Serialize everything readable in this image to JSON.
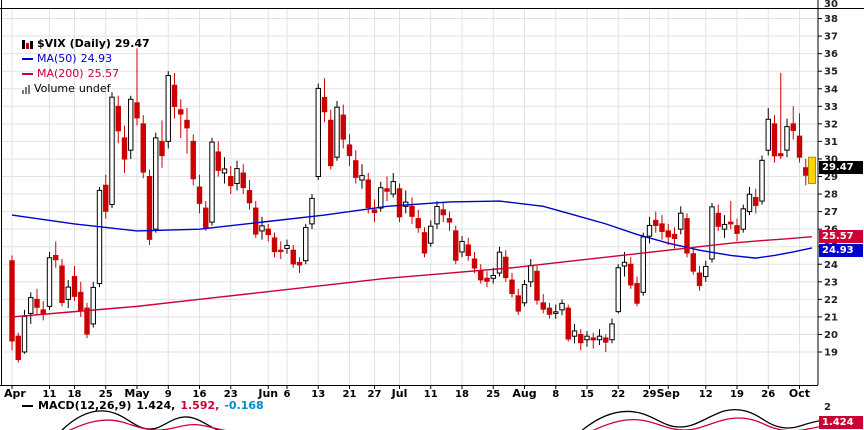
{
  "legend": {
    "symbol": "$VIX (Daily)",
    "symbol_value": "29.47",
    "ma50_label": "MA(50)",
    "ma50_value": "24.93",
    "ma200_label": "MA(200)",
    "ma200_value": "25.57",
    "volume_label": "Volume",
    "volume_value": "undef"
  },
  "price_labels": {
    "last": "29.47",
    "ma200": "25.57",
    "ma50": "24.93",
    "upper_panel": "30",
    "macd_axis": "2",
    "macd_box": "1.424"
  },
  "macd": {
    "label": "MACD(12,26,9)",
    "macd_value": "1.424,",
    "signal_value": "1.592,",
    "hist_value": "-0.168"
  },
  "colors": {
    "up": "#000000",
    "down": "#cc0000",
    "last_highlight": "#ffd400",
    "ma50": "#0000cc",
    "ma200": "#cc0033",
    "grid": "#e2e2e2"
  },
  "chart_data": {
    "type": "candlestick",
    "symbol": "$VIX",
    "timeframe": "Daily",
    "last_price": 29.47,
    "ma50_value": 24.93,
    "ma200_value": 25.57,
    "y_axis": {
      "min": 19,
      "max": 38,
      "tick_step": 1
    },
    "x_ticks": [
      {
        "label": "Apr",
        "i": 0,
        "month": true
      },
      {
        "label": "11",
        "i": 6
      },
      {
        "label": "18",
        "i": 10
      },
      {
        "label": "25",
        "i": 15
      },
      {
        "label": "May",
        "i": 20,
        "month": true
      },
      {
        "label": "9",
        "i": 25
      },
      {
        "label": "16",
        "i": 30
      },
      {
        "label": "23",
        "i": 35
      },
      {
        "label": "Jun",
        "i": 41,
        "month": true
      },
      {
        "label": "6",
        "i": 44
      },
      {
        "label": "13",
        "i": 49
      },
      {
        "label": "21",
        "i": 54
      },
      {
        "label": "27",
        "i": 58
      },
      {
        "label": "Jul",
        "i": 62,
        "month": true
      },
      {
        "label": "11",
        "i": 67
      },
      {
        "label": "18",
        "i": 72
      },
      {
        "label": "25",
        "i": 77
      },
      {
        "label": "Aug",
        "i": 82,
        "month": true
      },
      {
        "label": "8",
        "i": 87
      },
      {
        "label": "15",
        "i": 92
      },
      {
        "label": "22",
        "i": 97
      },
      {
        "label": "29",
        "i": 102
      },
      {
        "label": "Sep",
        "i": 105,
        "month": true
      },
      {
        "label": "12",
        "i": 111
      },
      {
        "label": "19",
        "i": 116
      },
      {
        "label": "26",
        "i": 121
      },
      {
        "label": "Oct",
        "i": 126,
        "month": true
      }
    ],
    "candles": [
      [
        24.2,
        24.5,
        19.1,
        19.63
      ],
      [
        19.9,
        20.1,
        18.4,
        18.57
      ],
      [
        19.0,
        21.4,
        18.9,
        21.03
      ],
      [
        21.2,
        22.4,
        20.6,
        22.1
      ],
      [
        22.0,
        22.6,
        21.1,
        21.55
      ],
      [
        21.4,
        21.9,
        20.8,
        21.16
      ],
      [
        21.6,
        24.7,
        21.4,
        24.37
      ],
      [
        24.5,
        25.3,
        23.8,
        24.26
      ],
      [
        23.9,
        24.3,
        21.6,
        21.82
      ],
      [
        22.0,
        23.1,
        21.5,
        22.7
      ],
      [
        23.3,
        23.9,
        21.9,
        22.17
      ],
      [
        22.4,
        23.0,
        21.0,
        21.37
      ],
      [
        21.5,
        21.8,
        19.8,
        20.02
      ],
      [
        20.6,
        23.0,
        20.4,
        22.68
      ],
      [
        22.9,
        28.4,
        22.7,
        28.21
      ],
      [
        28.5,
        29.1,
        26.6,
        27.02
      ],
      [
        27.4,
        33.8,
        27.2,
        33.52
      ],
      [
        33.0,
        33.6,
        30.9,
        31.6
      ],
      [
        31.2,
        31.9,
        29.2,
        29.99
      ],
      [
        30.5,
        33.6,
        30.0,
        33.4
      ],
      [
        33.2,
        36.3,
        31.9,
        32.34
      ],
      [
        32.0,
        32.5,
        28.9,
        29.25
      ],
      [
        29.0,
        29.4,
        25.1,
        25.42
      ],
      [
        26.0,
        31.5,
        25.8,
        31.2
      ],
      [
        31.0,
        32.2,
        29.5,
        30.19
      ],
      [
        31.0,
        35.0,
        30.6,
        34.75
      ],
      [
        34.2,
        34.9,
        32.3,
        32.99
      ],
      [
        32.8,
        33.4,
        31.2,
        32.56
      ],
      [
        32.2,
        32.9,
        30.3,
        31.77
      ],
      [
        31.0,
        31.4,
        28.5,
        28.87
      ],
      [
        28.4,
        29.1,
        26.9,
        27.47
      ],
      [
        27.2,
        27.6,
        25.9,
        26.1
      ],
      [
        26.4,
        31.2,
        26.2,
        30.96
      ],
      [
        30.4,
        31.0,
        29.0,
        29.35
      ],
      [
        29.2,
        30.1,
        28.6,
        29.43
      ],
      [
        29.0,
        29.6,
        28.0,
        28.48
      ],
      [
        28.6,
        29.9,
        28.2,
        29.45
      ],
      [
        29.2,
        29.7,
        28.0,
        28.37
      ],
      [
        28.2,
        28.8,
        27.1,
        27.5
      ],
      [
        27.2,
        27.6,
        25.5,
        25.72
      ],
      [
        25.9,
        26.7,
        25.4,
        26.19
      ],
      [
        26.0,
        26.3,
        25.3,
        25.69
      ],
      [
        25.5,
        25.8,
        24.4,
        24.72
      ],
      [
        24.8,
        25.3,
        24.3,
        24.79
      ],
      [
        24.9,
        25.4,
        24.6,
        25.07
      ],
      [
        24.8,
        25.1,
        23.8,
        24.02
      ],
      [
        24.1,
        24.4,
        23.5,
        23.96
      ],
      [
        24.2,
        26.3,
        24.0,
        26.09
      ],
      [
        26.3,
        28.0,
        26.0,
        27.75
      ],
      [
        29.0,
        34.3,
        28.8,
        34.02
      ],
      [
        33.5,
        34.6,
        32.1,
        32.69
      ],
      [
        32.2,
        32.8,
        29.4,
        29.62
      ],
      [
        30.1,
        33.3,
        29.9,
        32.95
      ],
      [
        32.5,
        33.1,
        30.6,
        31.13
      ],
      [
        30.8,
        31.4,
        29.6,
        30.19
      ],
      [
        29.9,
        30.5,
        28.6,
        28.95
      ],
      [
        28.8,
        29.7,
        28.3,
        29.05
      ],
      [
        28.8,
        29.2,
        26.9,
        27.23
      ],
      [
        27.1,
        27.7,
        26.4,
        26.95
      ],
      [
        27.2,
        28.7,
        27.0,
        28.36
      ],
      [
        28.3,
        29.0,
        27.6,
        28.16
      ],
      [
        28.0,
        29.2,
        27.8,
        28.71
      ],
      [
        28.3,
        28.6,
        26.4,
        26.7
      ],
      [
        27.3,
        28.2,
        26.9,
        27.54
      ],
      [
        27.3,
        27.8,
        26.3,
        26.73
      ],
      [
        26.6,
        27.1,
        25.8,
        26.08
      ],
      [
        25.8,
        26.1,
        24.4,
        24.64
      ],
      [
        25.2,
        26.5,
        25.0,
        26.17
      ],
      [
        26.3,
        27.6,
        26.0,
        27.29
      ],
      [
        27.1,
        27.5,
        26.4,
        26.82
      ],
      [
        26.6,
        27.0,
        25.9,
        26.4
      ],
      [
        25.9,
        26.2,
        24.0,
        24.23
      ],
      [
        24.7,
        25.6,
        24.4,
        25.3
      ],
      [
        25.1,
        25.5,
        24.2,
        24.5
      ],
      [
        24.3,
        24.7,
        23.5,
        23.79
      ],
      [
        23.6,
        24.0,
        22.9,
        23.11
      ],
      [
        23.2,
        23.6,
        22.7,
        23.03
      ],
      [
        23.2,
        23.8,
        22.9,
        23.36
      ],
      [
        23.5,
        25.0,
        23.3,
        24.69
      ],
      [
        24.4,
        24.8,
        23.0,
        23.24
      ],
      [
        23.1,
        23.5,
        22.1,
        22.33
      ],
      [
        22.2,
        22.6,
        21.1,
        21.33
      ],
      [
        21.8,
        23.1,
        21.6,
        22.84
      ],
      [
        23.0,
        24.3,
        22.7,
        23.93
      ],
      [
        23.6,
        23.9,
        21.7,
        21.95
      ],
      [
        21.8,
        22.3,
        21.2,
        21.44
      ],
      [
        21.5,
        21.8,
        20.9,
        21.15
      ],
      [
        21.2,
        21.7,
        20.9,
        21.29
      ],
      [
        21.4,
        22.0,
        21.1,
        21.77
      ],
      [
        21.5,
        21.7,
        19.6,
        19.74
      ],
      [
        19.9,
        20.6,
        19.5,
        20.2
      ],
      [
        20.0,
        20.3,
        19.1,
        19.53
      ],
      [
        19.7,
        20.2,
        19.3,
        19.9
      ],
      [
        19.8,
        20.1,
        19.2,
        19.69
      ],
      [
        19.7,
        20.3,
        19.4,
        19.9
      ],
      [
        19.8,
        20.0,
        19.0,
        19.56
      ],
      [
        19.7,
        20.9,
        19.5,
        20.6
      ],
      [
        21.3,
        24.0,
        21.2,
        23.8
      ],
      [
        23.9,
        24.7,
        23.3,
        24.11
      ],
      [
        24.0,
        24.4,
        22.6,
        22.82
      ],
      [
        22.9,
        23.3,
        21.6,
        21.78
      ],
      [
        22.4,
        25.8,
        22.2,
        25.56
      ],
      [
        25.6,
        26.7,
        25.2,
        26.21
      ],
      [
        26.5,
        27.0,
        25.8,
        26.21
      ],
      [
        26.3,
        26.8,
        25.4,
        25.87
      ],
      [
        25.9,
        26.3,
        25.1,
        25.56
      ],
      [
        25.7,
        26.1,
        24.9,
        25.47
      ],
      [
        26.0,
        27.3,
        25.7,
        26.91
      ],
      [
        26.6,
        26.9,
        24.4,
        24.64
      ],
      [
        24.6,
        25.0,
        23.4,
        23.61
      ],
      [
        23.5,
        23.9,
        22.5,
        22.79
      ],
      [
        23.3,
        24.2,
        23.0,
        23.87
      ],
      [
        24.3,
        27.5,
        24.1,
        27.27
      ],
      [
        26.9,
        27.4,
        25.9,
        26.16
      ],
      [
        26.0,
        26.8,
        25.5,
        26.27
      ],
      [
        26.4,
        27.6,
        26.0,
        26.3
      ],
      [
        26.2,
        26.6,
        25.3,
        25.76
      ],
      [
        26.0,
        27.4,
        25.8,
        27.16
      ],
      [
        27.0,
        28.4,
        26.8,
        27.99
      ],
      [
        27.8,
        28.3,
        26.9,
        27.35
      ],
      [
        27.6,
        30.2,
        27.4,
        29.92
      ],
      [
        30.5,
        32.9,
        30.2,
        32.26
      ],
      [
        32.0,
        32.5,
        29.8,
        30.18
      ],
      [
        30.3,
        34.9,
        30.0,
        30.18
      ],
      [
        30.5,
        32.3,
        30.1,
        31.84
      ],
      [
        32.0,
        33.0,
        31.1,
        31.62
      ],
      [
        31.3,
        32.6,
        29.8,
        30.1
      ],
      [
        29.5,
        30.0,
        28.5,
        29.07
      ],
      [
        29.2,
        30.1,
        28.6,
        29.47
      ]
    ],
    "overlays": [
      {
        "name": "MA(50)",
        "color": "#0000cc",
        "value": 24.93,
        "points": [
          [
            0,
            26.8
          ],
          [
            10,
            26.3
          ],
          [
            20,
            25.9
          ],
          [
            30,
            26.0
          ],
          [
            40,
            26.4
          ],
          [
            50,
            26.8
          ],
          [
            60,
            27.3
          ],
          [
            70,
            27.55
          ],
          [
            78,
            27.6
          ],
          [
            85,
            27.3
          ],
          [
            90,
            26.8
          ],
          [
            95,
            26.3
          ],
          [
            100,
            25.7
          ],
          [
            105,
            25.2
          ],
          [
            110,
            24.8
          ],
          [
            115,
            24.5
          ],
          [
            119,
            24.35
          ],
          [
            122,
            24.5
          ],
          [
            125,
            24.7
          ],
          [
            128,
            24.93
          ]
        ]
      },
      {
        "name": "MA(200)",
        "color": "#cc0033",
        "value": 25.57,
        "points": [
          [
            0,
            21.0
          ],
          [
            10,
            21.3
          ],
          [
            20,
            21.6
          ],
          [
            30,
            22.0
          ],
          [
            40,
            22.4
          ],
          [
            50,
            22.8
          ],
          [
            60,
            23.2
          ],
          [
            70,
            23.5
          ],
          [
            80,
            23.8
          ],
          [
            90,
            24.2
          ],
          [
            100,
            24.6
          ],
          [
            105,
            24.8
          ],
          [
            110,
            25.0
          ],
          [
            115,
            25.2
          ],
          [
            120,
            25.35
          ],
          [
            124,
            25.45
          ],
          [
            128,
            25.57
          ]
        ]
      }
    ],
    "indicator_panel": {
      "name": "MACD(12,26,9)",
      "macd": 1.424,
      "signal": 1.592,
      "histogram": -0.168,
      "axis_label": "2"
    }
  }
}
